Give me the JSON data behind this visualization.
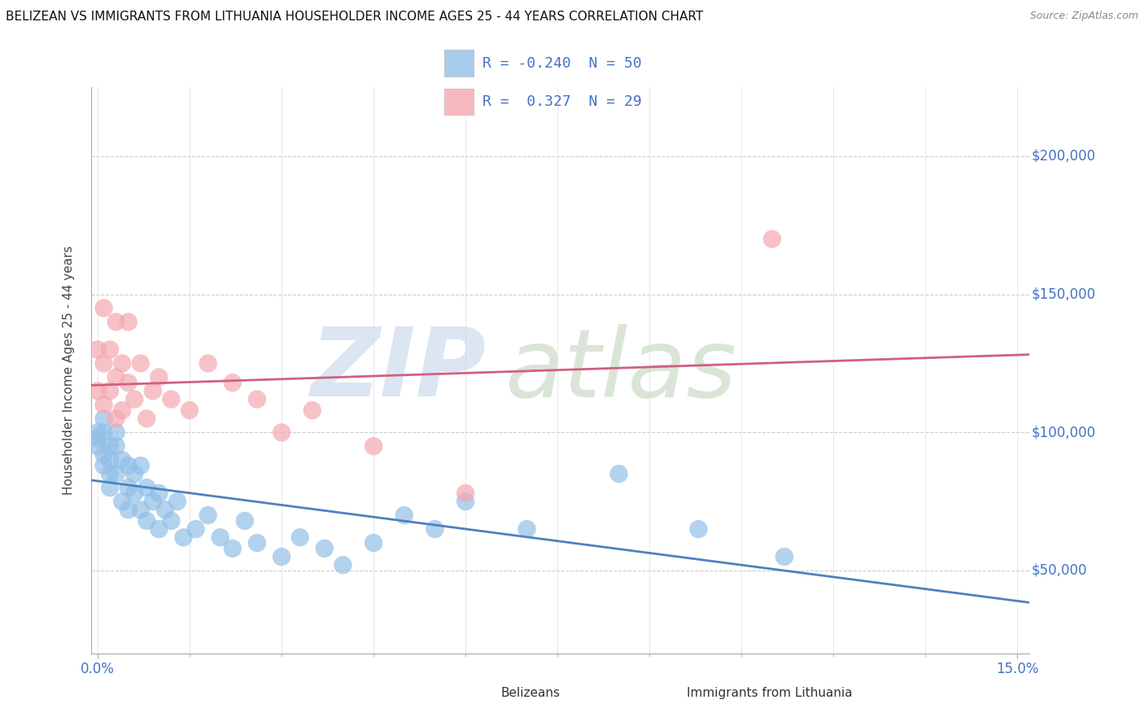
{
  "title": "BELIZEAN VS IMMIGRANTS FROM LITHUANIA HOUSEHOLDER INCOME AGES 25 - 44 YEARS CORRELATION CHART",
  "source": "Source: ZipAtlas.com",
  "ylabel": "Householder Income Ages 25 - 44 years",
  "xlim": [
    -0.001,
    0.152
  ],
  "ylim": [
    20000,
    225000
  ],
  "x_ticks": [
    0.0,
    0.15
  ],
  "x_tick_labels": [
    "0.0%",
    "15.0%"
  ],
  "y_ticks": [
    50000,
    100000,
    150000,
    200000
  ],
  "y_tick_labels": [
    "$50,000",
    "$100,000",
    "$150,000",
    "$200,000"
  ],
  "blue_color": "#92bfe8",
  "pink_color": "#f5a8b0",
  "blue_line_color": "#5080c0",
  "pink_line_color": "#d06080",
  "tick_color": "#4472c4",
  "background": "#ffffff",
  "grid_color_h": "#cccccc",
  "grid_color_v": "#e0e0e0",
  "blue_x": [
    0.0,
    0.0,
    0.0,
    0.001,
    0.001,
    0.001,
    0.001,
    0.002,
    0.002,
    0.002,
    0.002,
    0.003,
    0.003,
    0.003,
    0.004,
    0.004,
    0.005,
    0.005,
    0.005,
    0.006,
    0.006,
    0.007,
    0.007,
    0.008,
    0.008,
    0.009,
    0.01,
    0.01,
    0.011,
    0.012,
    0.013,
    0.014,
    0.016,
    0.018,
    0.02,
    0.022,
    0.024,
    0.026,
    0.03,
    0.033,
    0.037,
    0.04,
    0.045,
    0.05,
    0.055,
    0.06,
    0.07,
    0.085,
    0.098,
    0.112
  ],
  "blue_y": [
    100000,
    98000,
    95000,
    105000,
    100000,
    92000,
    88000,
    95000,
    90000,
    85000,
    80000,
    100000,
    95000,
    85000,
    90000,
    75000,
    88000,
    80000,
    72000,
    85000,
    78000,
    88000,
    72000,
    80000,
    68000,
    75000,
    78000,
    65000,
    72000,
    68000,
    75000,
    62000,
    65000,
    70000,
    62000,
    58000,
    68000,
    60000,
    55000,
    62000,
    58000,
    52000,
    60000,
    70000,
    65000,
    75000,
    65000,
    85000,
    65000,
    55000
  ],
  "pink_x": [
    0.0,
    0.0,
    0.001,
    0.001,
    0.001,
    0.002,
    0.002,
    0.003,
    0.003,
    0.003,
    0.004,
    0.004,
    0.005,
    0.005,
    0.006,
    0.007,
    0.008,
    0.009,
    0.01,
    0.012,
    0.015,
    0.018,
    0.022,
    0.026,
    0.03,
    0.035,
    0.045,
    0.06,
    0.11
  ],
  "pink_y": [
    130000,
    115000,
    145000,
    125000,
    110000,
    130000,
    115000,
    140000,
    120000,
    105000,
    125000,
    108000,
    140000,
    118000,
    112000,
    125000,
    105000,
    115000,
    120000,
    112000,
    108000,
    125000,
    118000,
    112000,
    100000,
    108000,
    95000,
    78000,
    170000
  ],
  "title_fontsize": 11,
  "source_fontsize": 9,
  "tick_fontsize": 12,
  "ylabel_fontsize": 11,
  "legend_fontsize": 13
}
